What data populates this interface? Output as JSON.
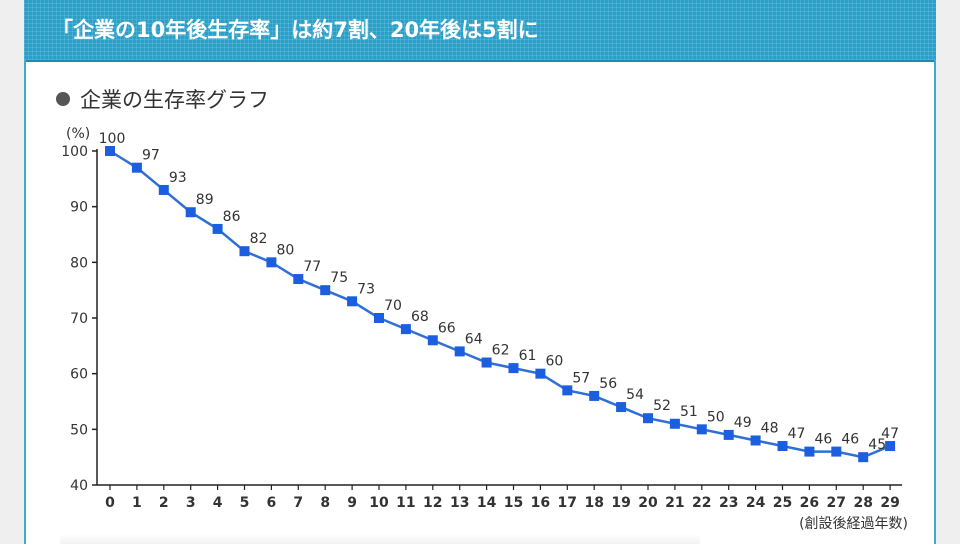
{
  "header": {
    "title": "「企業の10年後生存率」は約7割、20年後は5割に"
  },
  "chart_heading": "企業の生存率グラフ",
  "colors": {
    "header_bg": "#2aa0c9",
    "line": "#2f6fd6",
    "marker": "#1b5fe0",
    "text": "#333333",
    "axis": "#222222"
  },
  "chart_data": {
    "type": "line",
    "title": "企業の生存率グラフ",
    "xlabel": "(創設後経過年数)",
    "ylabel": "(%)",
    "ylim": [
      40,
      100
    ],
    "yticks": [
      40,
      50,
      60,
      70,
      80,
      90,
      100
    ],
    "grid": false,
    "x": [
      0,
      1,
      2,
      3,
      4,
      5,
      6,
      7,
      8,
      9,
      10,
      11,
      12,
      13,
      14,
      15,
      16,
      17,
      18,
      19,
      20,
      21,
      22,
      23,
      24,
      25,
      26,
      27,
      28,
      29
    ],
    "values": [
      100,
      97,
      93,
      89,
      86,
      82,
      80,
      77,
      75,
      73,
      70,
      68,
      66,
      64,
      62,
      61,
      60,
      57,
      56,
      54,
      52,
      51,
      50,
      49,
      48,
      47,
      46,
      46,
      45,
      47
    ]
  }
}
